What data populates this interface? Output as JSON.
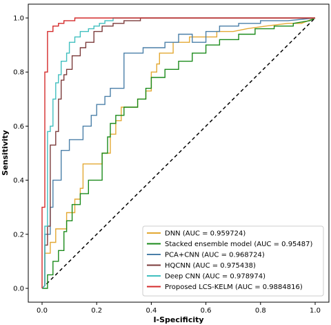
{
  "chart_data": {
    "type": "line",
    "title": "",
    "xlabel": "I-Specificity",
    "ylabel": "Sensitivity",
    "xlim": [
      0,
      1
    ],
    "ylim": [
      0,
      1
    ],
    "xticks": [
      "0.0",
      "0.2",
      "0.4",
      "0.6",
      "0.8",
      "1.0"
    ],
    "yticks": [
      "0.0",
      "0.2",
      "0.4",
      "0.6",
      "0.8",
      "1.0"
    ],
    "grid": false,
    "legend_position": "lower-right",
    "reference_line": {
      "x": [
        0,
        1
      ],
      "y": [
        0,
        1
      ],
      "style": "dashed",
      "color": "#000000"
    },
    "series": [
      {
        "name": "DNN (AUC = 0.959724)",
        "color": "#e3a832",
        "x": [
          0.0,
          0.01,
          0.01,
          0.03,
          0.03,
          0.05,
          0.05,
          0.09,
          0.09,
          0.12,
          0.12,
          0.14,
          0.14,
          0.15,
          0.15,
          0.22,
          0.22,
          0.25,
          0.25,
          0.27,
          0.27,
          0.29,
          0.29,
          0.35,
          0.35,
          0.38,
          0.38,
          0.4,
          0.4,
          0.42,
          0.42,
          0.43,
          0.43,
          0.48,
          0.48,
          0.54,
          0.54,
          0.64,
          0.64,
          0.7,
          0.75,
          0.82,
          0.9,
          0.95,
          1.0
        ],
        "y": [
          0.0,
          0.01,
          0.13,
          0.13,
          0.17,
          0.17,
          0.22,
          0.22,
          0.28,
          0.28,
          0.33,
          0.33,
          0.37,
          0.37,
          0.46,
          0.46,
          0.5,
          0.5,
          0.57,
          0.57,
          0.62,
          0.62,
          0.67,
          0.67,
          0.7,
          0.7,
          0.73,
          0.73,
          0.8,
          0.8,
          0.83,
          0.83,
          0.87,
          0.87,
          0.91,
          0.91,
          0.93,
          0.93,
          0.95,
          0.95,
          0.96,
          0.97,
          0.98,
          0.98,
          1.0
        ]
      },
      {
        "name": "Stacked ensemble model (AUC = 0.95487)",
        "color": "#1a8a1a",
        "x": [
          0.0,
          0.02,
          0.02,
          0.04,
          0.04,
          0.06,
          0.06,
          0.08,
          0.08,
          0.09,
          0.09,
          0.11,
          0.11,
          0.14,
          0.14,
          0.17,
          0.17,
          0.22,
          0.22,
          0.24,
          0.24,
          0.25,
          0.25,
          0.27,
          0.27,
          0.3,
          0.3,
          0.35,
          0.35,
          0.38,
          0.38,
          0.4,
          0.4,
          0.45,
          0.45,
          0.5,
          0.5,
          0.55,
          0.55,
          0.6,
          0.6,
          0.65,
          0.65,
          0.72,
          0.72,
          0.78,
          0.78,
          0.85,
          0.85,
          0.92,
          0.92,
          0.98,
          1.0
        ],
        "y": [
          0.0,
          0.0,
          0.05,
          0.05,
          0.1,
          0.1,
          0.14,
          0.14,
          0.21,
          0.21,
          0.25,
          0.25,
          0.31,
          0.31,
          0.35,
          0.35,
          0.4,
          0.4,
          0.5,
          0.5,
          0.56,
          0.56,
          0.61,
          0.61,
          0.64,
          0.64,
          0.67,
          0.67,
          0.7,
          0.7,
          0.74,
          0.74,
          0.78,
          0.78,
          0.81,
          0.81,
          0.84,
          0.84,
          0.87,
          0.87,
          0.9,
          0.9,
          0.92,
          0.92,
          0.94,
          0.94,
          0.96,
          0.96,
          0.97,
          0.97,
          0.98,
          0.99,
          1.0
        ]
      },
      {
        "name": "PCA+CNN (AUC = 0.968724)",
        "color": "#4a7fa8",
        "x": [
          0.0,
          0.01,
          0.01,
          0.03,
          0.03,
          0.04,
          0.04,
          0.07,
          0.07,
          0.1,
          0.1,
          0.15,
          0.15,
          0.18,
          0.18,
          0.2,
          0.2,
          0.23,
          0.23,
          0.25,
          0.25,
          0.3,
          0.3,
          0.37,
          0.37,
          0.45,
          0.45,
          0.5,
          0.5,
          0.55,
          0.55,
          0.6,
          0.6,
          0.65,
          0.65,
          0.72,
          0.72,
          0.8,
          0.8,
          0.9,
          1.0
        ],
        "y": [
          0.0,
          0.01,
          0.2,
          0.2,
          0.3,
          0.3,
          0.4,
          0.4,
          0.51,
          0.51,
          0.55,
          0.55,
          0.6,
          0.6,
          0.64,
          0.64,
          0.68,
          0.68,
          0.71,
          0.71,
          0.74,
          0.74,
          0.87,
          0.87,
          0.89,
          0.89,
          0.91,
          0.91,
          0.94,
          0.94,
          0.91,
          0.91,
          0.95,
          0.95,
          0.97,
          0.97,
          0.98,
          0.98,
          0.99,
          0.99,
          1.0
        ]
      },
      {
        "name": "HQCNN (AUC = 0.975438)",
        "color": "#7b3a3a",
        "x": [
          0.0,
          0.01,
          0.01,
          0.02,
          0.02,
          0.03,
          0.03,
          0.05,
          0.05,
          0.06,
          0.06,
          0.07,
          0.07,
          0.08,
          0.08,
          0.09,
          0.09,
          0.11,
          0.11,
          0.14,
          0.14,
          0.16,
          0.16,
          0.19,
          0.19,
          0.22,
          0.22,
          0.26,
          0.26,
          0.3,
          0.3,
          0.36,
          0.36,
          0.43,
          0.43,
          0.55,
          0.55,
          0.7,
          0.7,
          0.85,
          0.85,
          1.0
        ],
        "y": [
          0.0,
          0.01,
          0.16,
          0.16,
          0.23,
          0.23,
          0.53,
          0.53,
          0.58,
          0.58,
          0.7,
          0.7,
          0.77,
          0.77,
          0.79,
          0.79,
          0.81,
          0.81,
          0.86,
          0.86,
          0.89,
          0.89,
          0.91,
          0.91,
          0.95,
          0.95,
          0.97,
          0.97,
          0.98,
          0.98,
          0.99,
          0.99,
          1.0,
          1.0,
          1.0,
          1.0,
          1.0,
          1.0,
          1.0,
          1.0,
          1.0,
          1.0
        ]
      },
      {
        "name": "Deep CNN (AUC = 0.978974)",
        "color": "#3fbfbf",
        "x": [
          0.0,
          0.01,
          0.01,
          0.02,
          0.02,
          0.03,
          0.03,
          0.04,
          0.04,
          0.05,
          0.05,
          0.06,
          0.06,
          0.07,
          0.07,
          0.09,
          0.09,
          0.1,
          0.1,
          0.12,
          0.12,
          0.14,
          0.14,
          0.17,
          0.17,
          0.19,
          0.19,
          0.21,
          0.21,
          0.23,
          0.23,
          0.26,
          0.26,
          0.28,
          0.28,
          0.3,
          0.3,
          1.0
        ],
        "y": [
          0.0,
          0.01,
          0.23,
          0.23,
          0.58,
          0.58,
          0.6,
          0.6,
          0.7,
          0.7,
          0.76,
          0.76,
          0.79,
          0.79,
          0.84,
          0.84,
          0.87,
          0.87,
          0.91,
          0.91,
          0.93,
          0.93,
          0.95,
          0.95,
          0.96,
          0.96,
          0.97,
          0.97,
          0.98,
          0.98,
          0.99,
          0.99,
          1.0,
          1.0,
          1.0,
          1.0,
          1.0,
          1.0
        ]
      },
      {
        "name": "Proposed LCS-KELM (AUC = 0.9884816)",
        "color": "#d42a2a",
        "x": [
          0.0,
          0.0,
          0.0,
          0.01,
          0.01,
          0.02,
          0.02,
          0.04,
          0.04,
          0.06,
          0.06,
          0.08,
          0.08,
          0.12,
          0.12,
          0.16,
          0.16,
          1.0
        ],
        "y": [
          0.0,
          0.15,
          0.3,
          0.3,
          0.8,
          0.8,
          0.95,
          0.95,
          0.97,
          0.97,
          0.98,
          0.98,
          0.99,
          0.99,
          1.0,
          1.0,
          1.0,
          1.0
        ]
      }
    ]
  }
}
